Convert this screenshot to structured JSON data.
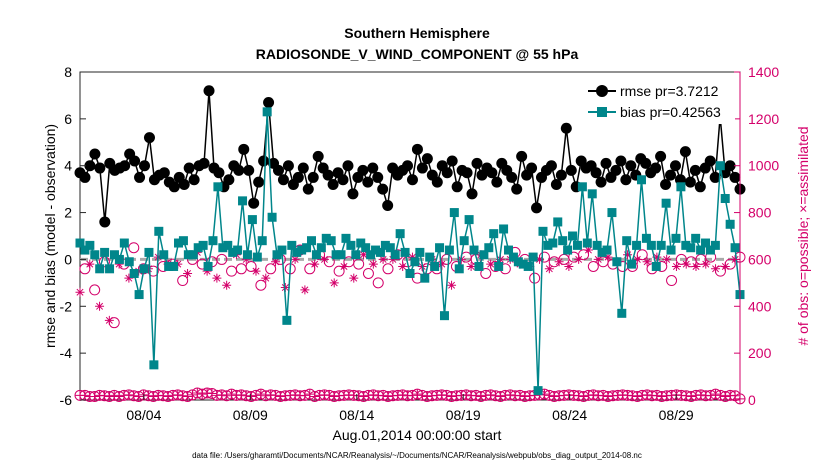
{
  "chart_data": {
    "type": "line",
    "title": "Southern Hemisphere",
    "subtitle": "RADIOSONDE_V_WIND_COMPONENT @ 55 hPa",
    "xlabel": "Aug.01,2014 00:00:00 start",
    "ylabel": "rmse and bias (model - observation)",
    "ylabel_right": "# of obs: o=possible; ×=assimilated",
    "footnote": "data file: /Users/gharamti/Documents/NCAR/Reanalysis/~/Documents/NCAR/Reanalysis/webpub/obs_diag_output_2014-08.nc",
    "xlim": [
      0,
      31
    ],
    "ylim": [
      -6,
      8
    ],
    "ylim_right": [
      0,
      1400
    ],
    "x_ticks": [
      3,
      8,
      13,
      18,
      23,
      28
    ],
    "x_tick_labels": [
      "08/04",
      "08/09",
      "08/14",
      "08/19",
      "08/24",
      "08/29"
    ],
    "y_ticks": [
      -6,
      -4,
      -2,
      0,
      2,
      4,
      6,
      8
    ],
    "y_tick_labels": [
      "-6",
      "-4",
      "-2",
      "0",
      "2",
      "4",
      "6",
      "8"
    ],
    "y_ticks_right": [
      0,
      200,
      400,
      600,
      800,
      1000,
      1200,
      1400
    ],
    "y_tick_labels_right": [
      "0",
      "200",
      "400",
      "600",
      "800",
      "1000",
      "1200",
      "1400"
    ],
    "legend_position": "top-right",
    "zero_line": true,
    "grid": false,
    "colors": {
      "rmse": "#000000",
      "bias": "#00868b",
      "obs": "#d4006a",
      "zero_line": "#a9a9a9"
    },
    "series": [
      {
        "name": "rmse pr=3.7212",
        "axis": "left",
        "marker": "circle",
        "values": [
          3.7,
          3.5,
          4.0,
          4.5,
          3.9,
          1.6,
          4.1,
          3.8,
          3.9,
          4.0,
          4.5,
          4.2,
          3.5,
          4.0,
          5.2,
          3.4,
          3.6,
          3.7,
          3.3,
          3.1,
          3.5,
          3.2,
          3.9,
          3.4,
          4.0,
          4.1,
          7.2,
          3.9,
          3.7,
          3.1,
          3.4,
          4.0,
          3.8,
          4.7,
          3.8,
          2.4,
          3.3,
          4.2,
          6.7,
          4.1,
          3.8,
          3.4,
          4.0,
          3.2,
          3.5,
          3.9,
          3.0,
          3.5,
          4.4,
          3.9,
          3.6,
          3.2,
          3.7,
          3.4,
          4.0,
          2.8,
          3.5,
          3.8,
          3.3,
          3.9,
          3.5,
          3.0,
          2.3,
          3.9,
          3.6,
          3.8,
          4.0,
          3.4,
          4.7,
          3.9,
          4.3,
          3.6,
          3.3,
          4.0,
          3.7,
          4.2,
          3.1,
          3.8,
          3.7,
          2.8,
          4.1,
          3.6,
          3.9,
          3.7,
          3.3,
          4.1,
          3.8,
          3.5,
          3.0,
          4.4,
          3.6,
          3.9,
          2.2,
          3.5,
          3.8,
          4.0,
          3.2,
          3.6,
          5.6,
          3.8,
          3.1,
          4.2,
          3.9,
          4.0,
          3.7,
          3.3,
          4.1,
          3.5,
          3.8,
          4.2,
          3.4,
          4.0,
          3.6,
          4.3,
          4.1,
          3.7,
          3.9,
          4.4,
          3.2,
          3.6,
          4.0,
          3.4,
          4.6,
          3.3,
          3.8,
          3.1,
          3.9,
          4.2,
          3.5,
          6.1,
          3.7,
          4.0,
          3.5,
          3.0
        ]
      },
      {
        "name": "bias pr=0.42563",
        "axis": "left",
        "marker": "square",
        "values": [
          0.7,
          0.4,
          0.6,
          0.2,
          -0.4,
          0.3,
          -0.4,
          0.2,
          0.0,
          0.7,
          -0.1,
          -0.6,
          -1.5,
          -0.4,
          0.3,
          -4.5,
          1.2,
          0.2,
          -0.3,
          -0.3,
          0.7,
          0.8,
          0.2,
          0.2,
          0.5,
          0.6,
          -0.3,
          0.8,
          3.1,
          0.5,
          0.6,
          0.3,
          0.4,
          2.5,
          0.2,
          1.7,
          0.1,
          0.8,
          6.3,
          1.8,
          0.2,
          0.4,
          -2.6,
          0.6,
          0.3,
          0.4,
          0.5,
          0.8,
          0.2,
          0.5,
          0.9,
          0.8,
          0.2,
          0.2,
          0.9,
          0.6,
          0.2,
          0.7,
          0.5,
          0.2,
          0.4,
          0.3,
          0.6,
          0.5,
          0.2,
          1.1,
          0.3,
          -0.6,
          -0.1,
          0.3,
          -0.8,
          0.1,
          -0.3,
          0.5,
          -2.4,
          0.4,
          2.0,
          -0.4,
          0.8,
          1.7,
          0.4,
          -0.3,
          0.2,
          0.5,
          1.1,
          -0.3,
          1.3,
          0.4,
          0.1,
          -0.1,
          -0.2,
          -0.3,
          0.1,
          -5.6,
          1.2,
          0.6,
          0.7,
          1.6,
          0.8,
          0.4,
          1.0,
          0.6,
          3.1,
          0.7,
          2.8,
          0.6,
          0.3,
          0.4,
          2.0,
          -0.1,
          -2.3,
          0.8,
          -0.2,
          0.6,
          3.4,
          0.9,
          0.6,
          -0.3,
          0.6,
          2.4,
          0.4,
          0.9,
          3.1,
          0.6,
          0.5,
          0.9,
          0.4,
          0.7,
          0.4,
          0.6,
          4.0,
          2.6,
          1.5,
          0.5,
          -1.5
        ]
      },
      {
        "name": "# obs possible",
        "axis": "right",
        "marker": "open-circle",
        "values": [
          20,
          20,
          15,
          15,
          20,
          18,
          15,
          20,
          15,
          20,
          22,
          18,
          15,
          22,
          18,
          15,
          20,
          18,
          15,
          20,
          22,
          18,
          15,
          22,
          30,
          25,
          30,
          28,
          20,
          22,
          18,
          25,
          20,
          22,
          18,
          15,
          20,
          25,
          18,
          22,
          20,
          15,
          18,
          20,
          22,
          18,
          20,
          25,
          15,
          20,
          22,
          20,
          15,
          18,
          20,
          22,
          20,
          18,
          15,
          20,
          22,
          18,
          20,
          15,
          18,
          20,
          22,
          18,
          20,
          25,
          20,
          15,
          18,
          20,
          22,
          20,
          15,
          18,
          20,
          22,
          18,
          20,
          15,
          20,
          22,
          18,
          15,
          20,
          22,
          18,
          20,
          15,
          18,
          20,
          22,
          25,
          20,
          15,
          18,
          20,
          22,
          20,
          18,
          15,
          20,
          22,
          18,
          20,
          15,
          18,
          20,
          22,
          20,
          18,
          15,
          20,
          22,
          18,
          20,
          15,
          18,
          20,
          22,
          20,
          18,
          15,
          20,
          22,
          18,
          20,
          25,
          20,
          15,
          20,
          18,
          5
        ]
      },
      {
        "name": "# obs assimilated",
        "axis": "right",
        "marker": "asterisk",
        "values": [
          460,
          560,
          580,
          470,
          400,
          590,
          340,
          330,
          580,
          580,
          520,
          650,
          550,
          560,
          560,
          550,
          610,
          570,
          580,
          580,
          580,
          510,
          540,
          600,
          630,
          580,
          550,
          590,
          520,
          600,
          490,
          550,
          620,
          560,
          600,
          570,
          550,
          490,
          520,
          560,
          590,
          600,
          480,
          560,
          600,
          640,
          470,
          560,
          580,
          620,
          600,
          590,
          500,
          550,
          570,
          590,
          520,
          580,
          620,
          540,
          580,
          500,
          600,
          560,
          600,
          620,
          570,
          590,
          610,
          520,
          570,
          560,
          600,
          560,
          580,
          600,
          490,
          570,
          600,
          610,
          570,
          600,
          620,
          540,
          580,
          570,
          600,
          560,
          600,
          630,
          580,
          600,
          570,
          520,
          600,
          610,
          560,
          590,
          590,
          600,
          570,
          610,
          600,
          620,
          640,
          570,
          600,
          590,
          610,
          580,
          590,
          570,
          620,
          570,
          600,
          620,
          590,
          560,
          610,
          570,
          600,
          510,
          570,
          600,
          580,
          590,
          570,
          600,
          580,
          610,
          560,
          550,
          570,
          580,
          600,
          610
        ]
      }
    ]
  }
}
